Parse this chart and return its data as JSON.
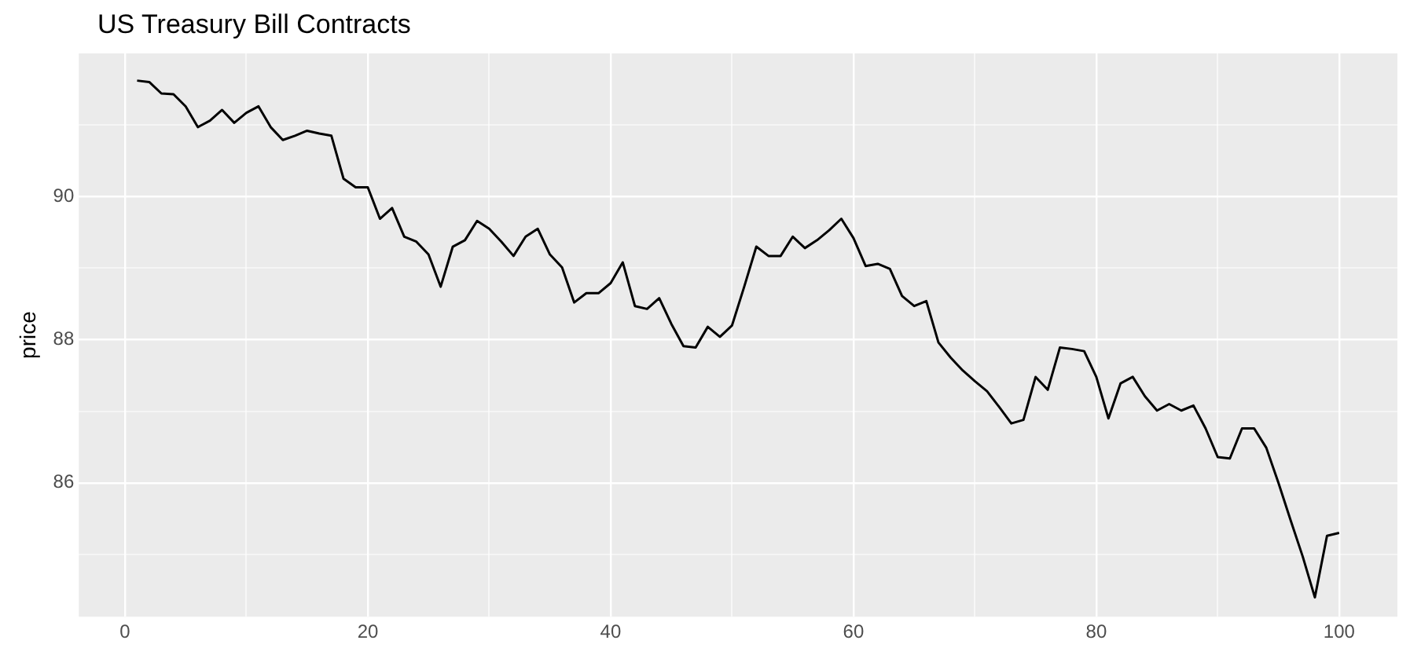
{
  "chart_data": {
    "type": "line",
    "title": "US Treasury Bill Contracts",
    "ylabel": "price",
    "x": [
      1,
      2,
      3,
      4,
      5,
      6,
      7,
      8,
      9,
      10,
      11,
      12,
      13,
      14,
      15,
      16,
      17,
      18,
      19,
      20,
      21,
      22,
      23,
      24,
      25,
      26,
      27,
      28,
      29,
      30,
      31,
      32,
      33,
      34,
      35,
      36,
      37,
      38,
      39,
      40,
      41,
      42,
      43,
      44,
      45,
      46,
      47,
      48,
      49,
      50,
      51,
      52,
      53,
      54,
      55,
      56,
      57,
      58,
      59,
      60,
      61,
      62,
      63,
      64,
      65,
      66,
      67,
      68,
      69,
      70,
      71,
      72,
      73,
      74,
      75,
      76,
      77,
      78,
      79,
      80,
      81,
      82,
      83,
      84,
      85,
      86,
      87,
      88,
      89,
      90,
      91,
      92,
      93,
      94,
      95,
      96,
      97,
      98,
      99,
      100
    ],
    "series": [
      {
        "color": "#000000",
        "values": [
          91.62,
          91.6,
          91.44,
          91.43,
          91.26,
          90.97,
          91.06,
          91.21,
          91.03,
          91.17,
          91.26,
          90.97,
          90.79,
          90.85,
          90.92,
          90.88,
          90.85,
          90.25,
          90.13,
          90.13,
          89.69,
          89.84,
          89.44,
          89.37,
          89.19,
          88.74,
          89.3,
          89.39,
          89.66,
          89.55,
          89.37,
          89.17,
          89.44,
          89.55,
          89.19,
          89.01,
          88.52,
          88.65,
          88.65,
          88.79,
          89.08,
          88.47,
          88.43,
          88.58,
          88.22,
          87.91,
          87.89,
          88.18,
          88.04,
          88.2,
          88.74,
          89.3,
          89.17,
          89.17,
          89.44,
          89.28,
          89.39,
          89.53,
          89.69,
          89.42,
          89.03,
          89.06,
          88.99,
          88.61,
          88.47,
          88.54,
          87.96,
          87.75,
          87.57,
          87.42,
          87.28,
          87.06,
          86.83,
          86.88,
          87.48,
          87.3,
          87.89,
          87.87,
          87.84,
          87.48,
          86.9,
          87.39,
          87.48,
          87.21,
          87.01,
          87.1,
          87.01,
          87.08,
          86.76,
          86.36,
          86.34,
          86.76,
          86.76,
          86.49,
          86.0,
          85.48,
          84.97,
          84.4,
          85.26,
          85.3
        ]
      }
    ],
    "xlim": [
      -3.8,
      104.8
    ],
    "xticks": [
      0,
      {
        "value": 10,
        "label": null
      },
      20,
      {
        "value": 30,
        "label": null
      },
      40,
      {
        "value": 50,
        "label": null
      },
      60,
      {
        "value": 70,
        "label": null
      },
      80,
      {
        "value": 90,
        "label": null
      },
      100
    ],
    "ylim": [
      84.13,
      92.0
    ],
    "yticks": [
      {
        "value": 85,
        "label": null
      },
      86,
      {
        "value": 87,
        "label": null
      },
      88,
      {
        "value": 89,
        "label": null
      },
      90,
      {
        "value": 91,
        "label": null
      }
    ],
    "grid": true,
    "marker": "none",
    "line_style": "solid"
  }
}
